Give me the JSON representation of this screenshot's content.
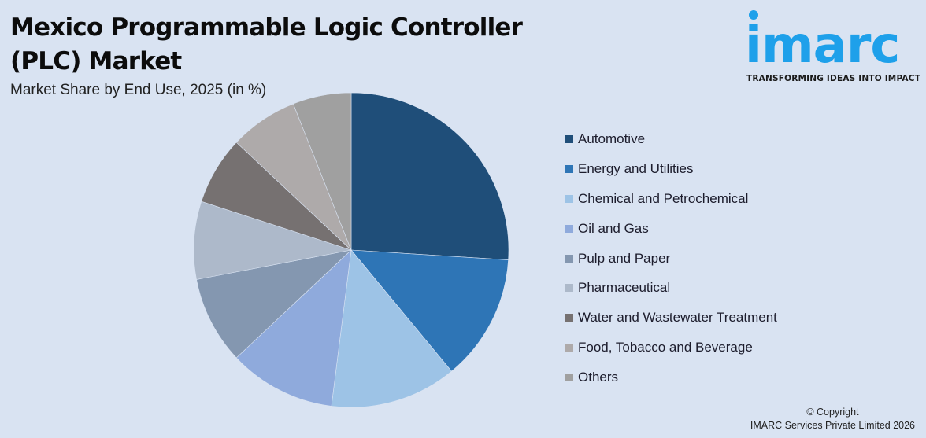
{
  "header": {
    "title": "Mexico Programmable Logic Controller (PLC) Market",
    "subtitle": "Market Share by End Use, 2025 (in %)"
  },
  "logo": {
    "word": "imarc",
    "tagline": "TRANSFORMING IDEAS INTO IMPACT",
    "color": "#1ea0ea"
  },
  "footer": {
    "line1": "© Copyright",
    "line2": "IMARC Services Private Limited 2026"
  },
  "chart_data": {
    "type": "pie",
    "title": "Mexico Programmable Logic Controller (PLC) Market",
    "subtitle": "Market Share by End Use, 2025 (in %)",
    "categories": [
      "Automotive",
      "Energy and Utilities",
      "Chemical and Petrochemical",
      "Oil and Gas",
      "Pulp and Paper",
      "Pharmaceutical",
      "Water and Wastewater Treatment",
      "Food, Tobacco and Beverage",
      "Others"
    ],
    "values": [
      26,
      13,
      13,
      11,
      9,
      8,
      7,
      7,
      6
    ],
    "colors": [
      "#1f4e79",
      "#2e75b6",
      "#9dc3e6",
      "#8faadc",
      "#8497b0",
      "#adb9ca",
      "#767171",
      "#aeaaaa",
      "#a0a0a0"
    ],
    "legend_position": "right",
    "start_angle": "top, clockwise"
  }
}
